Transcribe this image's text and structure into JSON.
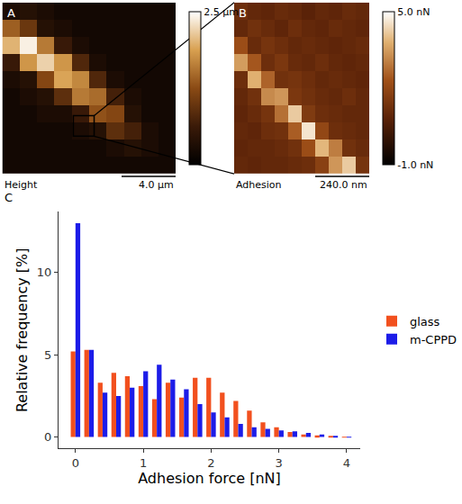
{
  "chart_data": [
    {
      "type": "heatmap",
      "panel": "A",
      "label": "Height",
      "scale_bar": "4.0 µm",
      "tick_labels": false,
      "cells": [
        [
          0.3,
          0.4,
          0.3,
          0.2,
          0.2,
          0.2,
          0.2,
          0.2,
          0.2,
          0.2
        ],
        [
          1.4,
          1.0,
          0.4,
          0.3,
          0.2,
          0.2,
          0.2,
          0.2,
          0.2,
          0.2
        ],
        [
          2.0,
          2.4,
          1.6,
          0.6,
          0.3,
          0.2,
          0.2,
          0.2,
          0.2,
          0.2
        ],
        [
          0.6,
          1.8,
          2.2,
          1.8,
          0.8,
          0.3,
          0.2,
          0.2,
          0.2,
          0.2
        ],
        [
          0.3,
          0.4,
          1.2,
          1.9,
          1.7,
          0.8,
          0.3,
          0.2,
          0.2,
          0.2
        ],
        [
          0.2,
          0.3,
          0.4,
          0.9,
          1.6,
          1.5,
          0.7,
          0.3,
          0.2,
          0.2
        ],
        [
          0.2,
          0.2,
          0.3,
          0.3,
          0.6,
          1.3,
          1.2,
          0.4,
          0.2,
          0.2
        ],
        [
          0.2,
          0.2,
          0.2,
          0.2,
          0.3,
          0.4,
          0.9,
          0.7,
          0.3,
          0.2
        ],
        [
          0.2,
          0.2,
          0.2,
          0.2,
          0.2,
          0.2,
          0.3,
          0.4,
          0.3,
          0.2
        ],
        [
          0.2,
          0.2,
          0.2,
          0.2,
          0.2,
          0.2,
          0.2,
          0.2,
          0.2,
          0.2
        ]
      ],
      "colorbar": {
        "range": [
          0,
          2.5
        ],
        "ticks": [
          {
            "value": 2.5,
            "label": "2.5 µm"
          }
        ]
      }
    },
    {
      "type": "heatmap",
      "panel": "B",
      "label": "Adhesion",
      "scale_bar": "240.0 nm",
      "tick_labels": false,
      "cells": [
        [
          1.2,
          1.0,
          0.9,
          1.1,
          1.0,
          0.8,
          1.0,
          0.9,
          1.1,
          1.0
        ],
        [
          1.0,
          1.3,
          1.1,
          0.9,
          1.2,
          1.0,
          0.9,
          1.1,
          1.0,
          0.9
        ],
        [
          2.2,
          1.1,
          1.4,
          1.2,
          1.0,
          1.1,
          1.0,
          0.9,
          1.0,
          1.1
        ],
        [
          3.5,
          2.4,
          1.2,
          1.5,
          1.1,
          1.0,
          1.2,
          1.0,
          0.9,
          1.0
        ],
        [
          1.2,
          3.8,
          2.6,
          1.3,
          1.4,
          1.2,
          1.0,
          1.1,
          1.0,
          0.9
        ],
        [
          1.0,
          1.3,
          3.2,
          3.4,
          1.5,
          1.3,
          1.1,
          1.0,
          1.2,
          1.0
        ],
        [
          0.9,
          1.1,
          1.4,
          2.8,
          4.2,
          1.6,
          1.2,
          1.1,
          1.0,
          1.0
        ],
        [
          1.0,
          0.9,
          1.2,
          1.3,
          2.5,
          4.6,
          2.0,
          1.2,
          1.1,
          1.0
        ],
        [
          0.9,
          1.0,
          1.0,
          1.1,
          1.3,
          2.2,
          3.9,
          3.0,
          1.3,
          1.1
        ],
        [
          1.0,
          0.9,
          1.0,
          1.0,
          1.1,
          1.2,
          1.8,
          3.4,
          4.2,
          1.4
        ]
      ],
      "colorbar": {
        "range": [
          -1,
          5
        ],
        "ticks": [
          {
            "value": 5,
            "label": "5.0 nN"
          },
          {
            "value": -1,
            "label": "-1.0 nN"
          }
        ]
      }
    },
    {
      "type": "histogram",
      "panel": "C",
      "x_label": "Adhesion force [nN]",
      "y_label": "Relative frequency [%]",
      "bins": [
        -0.1,
        0.1,
        0.3,
        0.5,
        0.7,
        0.9,
        1.1,
        1.3,
        1.5,
        1.7,
        1.9,
        2.1,
        2.3,
        2.5,
        2.7,
        2.9,
        3.1,
        3.3,
        3.5,
        3.7,
        3.9,
        4.1
      ],
      "series": [
        {
          "name": "glass",
          "color": "#f2501e",
          "values": [
            5.2,
            5.3,
            3.3,
            3.9,
            3.7,
            3.1,
            2.3,
            3.3,
            2.4,
            3.6,
            3.6,
            2.7,
            2.2,
            1.6,
            0.9,
            0.6,
            0.3,
            0.15,
            0.1,
            0.05,
            0.02
          ]
        },
        {
          "name": "m-CPPD",
          "color": "#1c1ce8",
          "values": [
            13.0,
            5.3,
            2.7,
            2.5,
            3.0,
            4.0,
            4.4,
            3.5,
            2.9,
            2.0,
            1.5,
            1.2,
            0.8,
            0.6,
            0.5,
            0.4,
            0.35,
            0.25,
            0.15,
            0.05,
            0.02
          ]
        }
      ],
      "xlim": [
        -0.25,
        4.2
      ],
      "xticks": [
        0,
        1,
        2,
        3,
        4
      ],
      "ylim": [
        -0.7,
        13.7
      ],
      "yticks": [
        0,
        5,
        10
      ],
      "grid": false,
      "legend": "right"
    }
  ]
}
